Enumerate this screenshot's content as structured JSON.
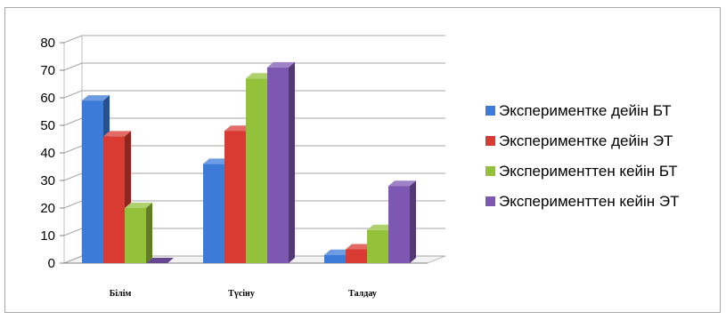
{
  "chart_data": {
    "type": "bar",
    "categories": [
      "Білім",
      "Түсіну",
      "Талдау"
    ],
    "series": [
      {
        "name": "Экспериментке дейін БТ",
        "values": [
          59,
          36,
          3
        ],
        "color": "#3d7bd9"
      },
      {
        "name": "Экспериментке дейін ЭТ",
        "values": [
          46,
          48,
          5
        ],
        "color": "#d93a32"
      },
      {
        "name": "Эксперименттен кейін БТ",
        "values": [
          20,
          67,
          12
        ],
        "color": "#93c13a"
      },
      {
        "name": "Эксперименттен кейін ЭТ",
        "values": [
          0,
          71,
          28
        ],
        "color": "#7e57b3"
      }
    ],
    "ylim": [
      0,
      80
    ],
    "yticks": [
      0,
      10,
      20,
      30,
      40,
      50,
      60,
      70,
      80
    ],
    "grid": true,
    "legend_position": "right",
    "style": "3d-clustered-column"
  }
}
